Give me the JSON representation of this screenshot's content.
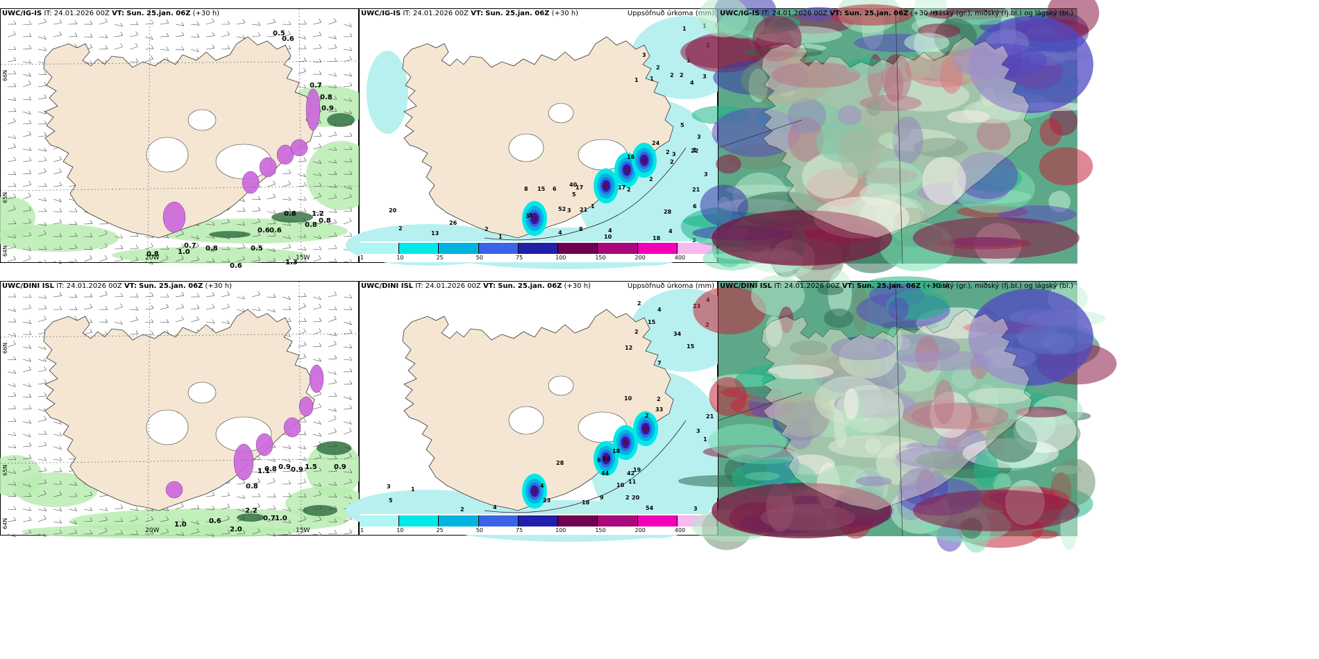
{
  "panels": [
    {
      "id": "p1",
      "model": "UWC/IG-IS",
      "it_label": "IT:",
      "it": "24.01.2026 00Z",
      "vt_label": "VT:",
      "vt": "Sun. 25.jan. 06Z",
      "lead": "(+30 h)",
      "title": ""
    },
    {
      "id": "p2",
      "model": "UWC/IG-IS",
      "it_label": "IT:",
      "it": "24.01.2026 00Z",
      "vt_label": "VT:",
      "vt": "Sun. 25.jan. 06Z",
      "lead": "(+30 h)",
      "title": "Uppsöfnuð úrkoma (mm)"
    },
    {
      "id": "p3",
      "model": "UWC/IG-IS",
      "it_label": "IT:",
      "it": "24.01.2026 00Z",
      "vt_label": "VT:",
      "vt": "Sun. 25.jan. 06Z",
      "lead": "(+30 h)",
      "title": "Háský (gr.), miðský (fj.bl.) og lágský (bl.)"
    },
    {
      "id": "p4",
      "model": "UWC/DINI ISL",
      "it_label": "IT:",
      "it": "24.01.2026 00Z",
      "vt_label": "VT:",
      "vt": "Sun. 25.jan. 06Z",
      "lead": "(+30 h)",
      "title": ""
    },
    {
      "id": "p5",
      "model": "UWC/DINI ISL",
      "it_label": "IT:",
      "it": "24.01.2026 00Z",
      "vt_label": "VT:",
      "vt": "Sun. 25.jan. 06Z",
      "lead": "(+30 h)",
      "title": "Uppsöfnuð úrkoma (mm)"
    },
    {
      "id": "p6",
      "model": "UWC/DINI ISL",
      "it_label": "IT:",
      "it": "24.01.2026 00Z",
      "vt_label": "VT:",
      "vt": "Sun. 25.jan. 06Z",
      "lead": "(+30 h)",
      "title": "Háský (gr.), miðský (fj.bl.) og lágský (bl.)"
    }
  ],
  "grid_labels": {
    "lat66": "66N",
    "lat64": "64N",
    "lat65": "65N",
    "lon20": "20W",
    "lon15": "15W"
  },
  "colorbar": {
    "ticks": [
      "1",
      "10",
      "25",
      "50",
      "75",
      "100",
      "150",
      "200",
      "400"
    ],
    "colors": [
      "#aef5f5",
      "#00e8e8",
      "#00b4e0",
      "#3a64e8",
      "#2020a8",
      "#700050",
      "#a8087c",
      "#f000b8",
      "#f8b8f0"
    ]
  },
  "colors": {
    "land": "#f5e6d3",
    "sea": "#ffffff",
    "precip_light": "#b8f0f0",
    "wind_green": "#b8ecb0",
    "wind_dark": "#2d6b3e",
    "snow_mag": "#cc66dd"
  },
  "wind_values_top": [
    "0.5",
    "0.6",
    "0.7",
    "0.8",
    "0.9",
    "0.8",
    "1.2",
    "0.8",
    "0.6",
    "0.6",
    "0.8",
    "0.8",
    "0.8",
    "0.5",
    "0.7",
    "1.3",
    "1.0",
    "0.6"
  ],
  "wind_values_bottom": [
    "0.8",
    "0.8",
    "0.9",
    "0.9",
    "1.1",
    "1.5",
    "0.9",
    "0.6",
    "2.2",
    "0.7",
    "1.0",
    "2.0",
    "1.0"
  ],
  "precip_values_top": [
    "3",
    "3",
    "1",
    "1",
    "2",
    "3",
    "3",
    "3",
    "2",
    "4",
    "2",
    "2",
    "1",
    "1",
    "21",
    "1",
    "24",
    "2",
    "2",
    "22",
    "1",
    "5",
    "16",
    "2",
    "1",
    "17",
    "5",
    "6",
    "15",
    "52",
    "40",
    "2",
    "8",
    "3",
    "3",
    "3",
    "18",
    "21",
    "17",
    "28",
    "26",
    "20",
    "8",
    "13",
    "10",
    "2",
    "4",
    "4",
    "1",
    "4",
    "6",
    "2",
    "3"
  ],
  "precip_values_bottom": [
    "2",
    "1",
    "2",
    "2",
    "4",
    "4",
    "2",
    "7",
    "2",
    "3",
    "15",
    "10",
    "34",
    "33",
    "23",
    "15",
    "12",
    "21",
    "42",
    "44",
    "54",
    "20",
    "28",
    "18",
    "23",
    "10",
    "19",
    "18",
    "11",
    "6",
    "10",
    "5",
    "2",
    "4",
    "3",
    "4",
    "3",
    "2",
    "1",
    "9"
  ]
}
